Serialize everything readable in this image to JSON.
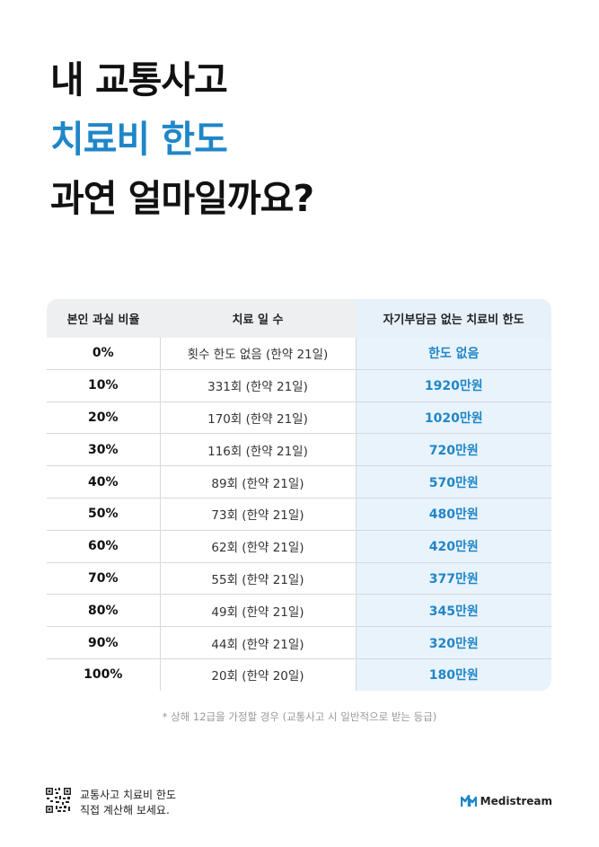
{
  "headline": {
    "line1": "내 교통사고",
    "line2": "치료비 한도",
    "line3": "과연 얼마일까요?"
  },
  "table": {
    "headers": [
      "본인 과실 비율",
      "치료 일 수",
      "자기부담금 없는 치료비 한도"
    ],
    "rows": [
      {
        "ratio": "0%",
        "days": "횟수 한도 없음 (한약 21일)",
        "limit": "한도 없음"
      },
      {
        "ratio": "10%",
        "days": "331회 (한약 21일)",
        "limit": "1920만원"
      },
      {
        "ratio": "20%",
        "days": "170회 (한약 21일)",
        "limit": "1020만원"
      },
      {
        "ratio": "30%",
        "days": "116회 (한약 21일)",
        "limit": "720만원"
      },
      {
        "ratio": "40%",
        "days": "89회 (한약 21일)",
        "limit": "570만원"
      },
      {
        "ratio": "50%",
        "days": "73회 (한약 21일)",
        "limit": "480만원"
      },
      {
        "ratio": "60%",
        "days": "62회 (한약 21일)",
        "limit": "420만원"
      },
      {
        "ratio": "70%",
        "days": "55회 (한약 21일)",
        "limit": "377만원"
      },
      {
        "ratio": "80%",
        "days": "49회 (한약 21일)",
        "limit": "345만원"
      },
      {
        "ratio": "90%",
        "days": "44회 (한약 21일)",
        "limit": "320만원"
      },
      {
        "ratio": "100%",
        "days": "20회 (한약 20일)",
        "limit": "180만원"
      }
    ]
  },
  "footnote": "* 상해 12급을 가정할 경우 (교통사고 시 일반적으로 받는 등급)",
  "cta": {
    "line1": "교통사고 치료비 한도",
    "line2": "직접 계산해 보세요."
  },
  "brand": {
    "name": "Medistream",
    "color": "#1f86c8"
  },
  "colors": {
    "accent": "#1f86c8",
    "header_bg": "#eeeff1",
    "highlight_bg": "#e9f3fb"
  }
}
